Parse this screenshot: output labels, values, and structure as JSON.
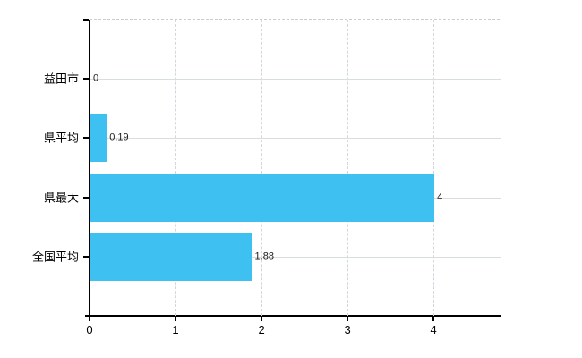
{
  "chart_data": {
    "type": "bar",
    "orientation": "horizontal",
    "title": "",
    "categories": [
      "益田市",
      "県平均",
      "県最大",
      "全国平均"
    ],
    "values": [
      0,
      0.19,
      4,
      1.88
    ],
    "value_labels": [
      "0",
      "0.19",
      "4",
      "1.88"
    ],
    "x_tick_labels": [
      "0",
      "1",
      "2",
      "3",
      "4"
    ],
    "x_tick_values": [
      0,
      1,
      2,
      3,
      4
    ],
    "xlim": [
      0,
      4.79
    ],
    "grid": true,
    "legend": false
  },
  "colors": {
    "bar": "#3ec1f1",
    "horizontal_grid": "#d8ded8",
    "vertical_grid": "#d4d6dd",
    "axis": "#000000",
    "value_text": "#1a1a1a",
    "label_text": "#000000",
    "background": "#ffffff"
  }
}
